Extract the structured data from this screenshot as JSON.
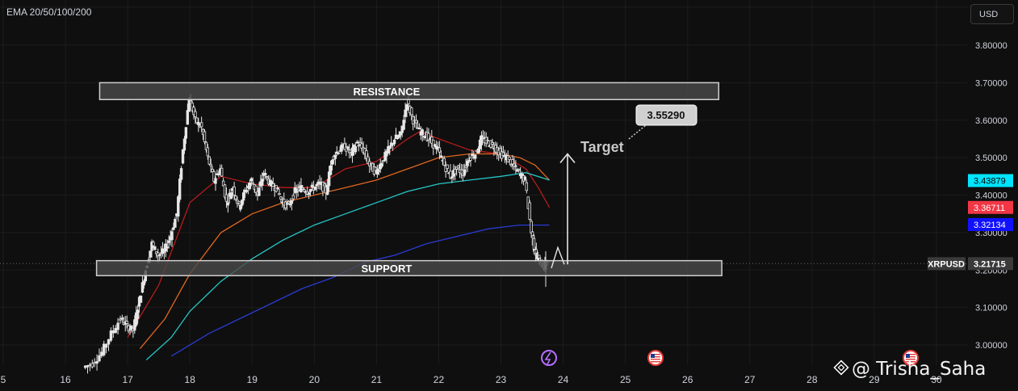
{
  "indicator": {
    "label": "EMA 20/50/100/200"
  },
  "currency_button": {
    "label": "USD"
  },
  "watermark": {
    "text": "@ Trisha_Saha"
  },
  "colors": {
    "background": "#0f0f0f",
    "grid": "#1c1c1c",
    "candle": "#e6e6e6",
    "ema20": "#b71c1c",
    "ema50": "#e0661f",
    "ema100": "#26c6c6",
    "ema200": "#2a3bd4",
    "ema20_tag": "#f23645",
    "ema100_tag": "#00e5ff",
    "ema200_tag": "#1111ff",
    "price_tag": "#3a3a3a",
    "zone_fill": "#4a4a4a",
    "zone_border": "#cfcfcf"
  },
  "chart_data": {
    "type": "candlestick",
    "symbol": "XRPUSD",
    "x_ticks": [
      "5",
      "16",
      "17",
      "18",
      "19",
      "20",
      "21",
      "22",
      "23",
      "24",
      "25",
      "26",
      "27",
      "28",
      "29",
      "30"
    ],
    "x_range_days": [
      15,
      30
    ],
    "y_ticks": [
      "3.80000",
      "3.70000",
      "3.60000",
      "3.50000",
      "3.40000",
      "3.30000",
      "3.20000",
      "3.10000",
      "3.00000"
    ],
    "y_range": [
      2.94,
      3.84
    ],
    "grid": true,
    "zones": [
      {
        "label": "RESISTANCE",
        "x_start": 16.55,
        "x_end": 26.5,
        "y_low": 3.655,
        "y_high": 3.7
      },
      {
        "label": "SUPPORT",
        "x_start": 16.5,
        "x_end": 26.55,
        "y_low": 3.185,
        "y_high": 3.225
      }
    ],
    "annotations": {
      "target_text": "Target",
      "target_price": "3.55290",
      "arrow_from_price": 3.215,
      "arrow_to_price": 3.51
    },
    "price_tags": [
      {
        "name": "ema100",
        "value": "3.43879"
      },
      {
        "name": "ema20",
        "value": "3.36711"
      },
      {
        "name": "ema200",
        "value": "3.32134"
      },
      {
        "name": "last",
        "symbol": "XRPUSD",
        "value": "3.21715"
      }
    ],
    "close_series": [
      [
        16.3,
        2.94
      ],
      [
        16.45,
        2.95
      ],
      [
        16.6,
        2.98
      ],
      [
        16.75,
        3.03
      ],
      [
        16.9,
        3.07
      ],
      [
        17.0,
        3.05
      ],
      [
        17.1,
        3.04
      ],
      [
        17.2,
        3.12
      ],
      [
        17.3,
        3.2
      ],
      [
        17.4,
        3.27
      ],
      [
        17.5,
        3.24
      ],
      [
        17.6,
        3.25
      ],
      [
        17.7,
        3.29
      ],
      [
        17.8,
        3.35
      ],
      [
        17.9,
        3.52
      ],
      [
        18.0,
        3.66
      ],
      [
        18.1,
        3.6
      ],
      [
        18.2,
        3.58
      ],
      [
        18.3,
        3.5
      ],
      [
        18.4,
        3.44
      ],
      [
        18.5,
        3.47
      ],
      [
        18.6,
        3.38
      ],
      [
        18.7,
        3.42
      ],
      [
        18.8,
        3.37
      ],
      [
        18.9,
        3.41
      ],
      [
        19.0,
        3.44
      ],
      [
        19.1,
        3.4
      ],
      [
        19.2,
        3.46
      ],
      [
        19.3,
        3.43
      ],
      [
        19.4,
        3.42
      ],
      [
        19.5,
        3.38
      ],
      [
        19.6,
        3.37
      ],
      [
        19.7,
        3.41
      ],
      [
        19.8,
        3.42
      ],
      [
        19.9,
        3.41
      ],
      [
        20.0,
        3.42
      ],
      [
        20.1,
        3.43
      ],
      [
        20.2,
        3.41
      ],
      [
        20.3,
        3.5
      ],
      [
        20.4,
        3.52
      ],
      [
        20.5,
        3.53
      ],
      [
        20.6,
        3.51
      ],
      [
        20.7,
        3.54
      ],
      [
        20.8,
        3.52
      ],
      [
        20.9,
        3.48
      ],
      [
        21.0,
        3.46
      ],
      [
        21.1,
        3.49
      ],
      [
        21.2,
        3.52
      ],
      [
        21.3,
        3.55
      ],
      [
        21.4,
        3.56
      ],
      [
        21.5,
        3.65
      ],
      [
        21.6,
        3.6
      ],
      [
        21.7,
        3.57
      ],
      [
        21.8,
        3.56
      ],
      [
        21.9,
        3.54
      ],
      [
        22.0,
        3.52
      ],
      [
        22.1,
        3.48
      ],
      [
        22.2,
        3.45
      ],
      [
        22.3,
        3.47
      ],
      [
        22.4,
        3.46
      ],
      [
        22.5,
        3.5
      ],
      [
        22.6,
        3.51
      ],
      [
        22.7,
        3.55
      ],
      [
        22.8,
        3.54
      ],
      [
        22.9,
        3.53
      ],
      [
        23.0,
        3.51
      ],
      [
        23.1,
        3.5
      ],
      [
        23.2,
        3.48
      ],
      [
        23.3,
        3.46
      ],
      [
        23.4,
        3.44
      ],
      [
        23.5,
        3.3
      ],
      [
        23.55,
        3.25
      ],
      [
        23.6,
        3.23
      ],
      [
        23.7,
        3.21
      ],
      [
        23.75,
        3.22
      ]
    ],
    "ema_series": {
      "ema20": [
        [
          17.0,
          3.02
        ],
        [
          17.5,
          3.16
        ],
        [
          18.0,
          3.38
        ],
        [
          18.5,
          3.45
        ],
        [
          19.0,
          3.43
        ],
        [
          19.5,
          3.42
        ],
        [
          20.0,
          3.42
        ],
        [
          20.5,
          3.47
        ],
        [
          21.0,
          3.49
        ],
        [
          21.5,
          3.55
        ],
        [
          21.7,
          3.57
        ],
        [
          22.0,
          3.55
        ],
        [
          22.5,
          3.52
        ],
        [
          23.0,
          3.51
        ],
        [
          23.4,
          3.47
        ],
        [
          23.6,
          3.42
        ],
        [
          23.78,
          3.367
        ]
      ],
      "ema50": [
        [
          17.2,
          2.99
        ],
        [
          17.6,
          3.07
        ],
        [
          18.0,
          3.19
        ],
        [
          18.5,
          3.3
        ],
        [
          19.0,
          3.35
        ],
        [
          19.5,
          3.38
        ],
        [
          20.0,
          3.4
        ],
        [
          20.5,
          3.42
        ],
        [
          21.0,
          3.44
        ],
        [
          21.5,
          3.47
        ],
        [
          22.0,
          3.5
        ],
        [
          22.5,
          3.51
        ],
        [
          23.0,
          3.51
        ],
        [
          23.3,
          3.5
        ],
        [
          23.55,
          3.48
        ],
        [
          23.78,
          3.44
        ]
      ],
      "ema100": [
        [
          17.3,
          2.96
        ],
        [
          17.7,
          3.02
        ],
        [
          18.0,
          3.09
        ],
        [
          18.5,
          3.17
        ],
        [
          19.0,
          3.23
        ],
        [
          19.5,
          3.28
        ],
        [
          20.0,
          3.32
        ],
        [
          20.5,
          3.35
        ],
        [
          21.0,
          3.38
        ],
        [
          21.5,
          3.41
        ],
        [
          22.0,
          3.43
        ],
        [
          22.5,
          3.44
        ],
        [
          23.0,
          3.45
        ],
        [
          23.4,
          3.46
        ],
        [
          23.78,
          3.44
        ]
      ],
      "ema200": [
        [
          17.7,
          2.97
        ],
        [
          18.3,
          3.03
        ],
        [
          18.8,
          3.07
        ],
        [
          19.3,
          3.11
        ],
        [
          19.8,
          3.15
        ],
        [
          20.3,
          3.18
        ],
        [
          20.8,
          3.22
        ],
        [
          21.3,
          3.24
        ],
        [
          21.8,
          3.27
        ],
        [
          22.3,
          3.29
        ],
        [
          22.8,
          3.31
        ],
        [
          23.3,
          3.32
        ],
        [
          23.78,
          3.32
        ]
      ]
    }
  }
}
